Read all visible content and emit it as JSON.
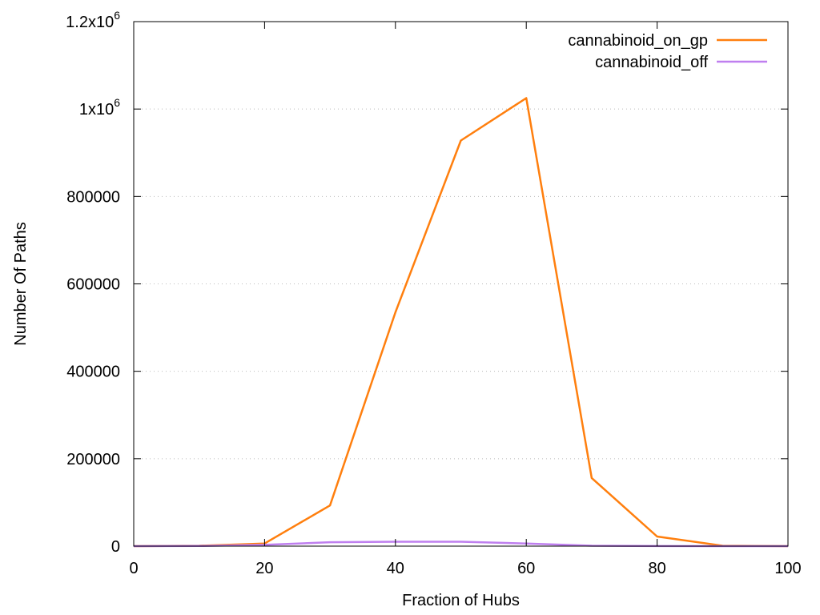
{
  "chart_data": {
    "type": "line",
    "title": "",
    "xlabel": "Fraction of Hubs",
    "ylabel": "Number Of Paths",
    "xlim": [
      0,
      100
    ],
    "ylim": [
      0,
      1200000
    ],
    "xticks": [
      0,
      20,
      40,
      60,
      80,
      100
    ],
    "xtick_labels": [
      "0",
      "20",
      "40",
      "60",
      "80",
      "100"
    ],
    "yticks": [
      0,
      200000,
      400000,
      600000,
      800000,
      1000000,
      1200000
    ],
    "ytick_labels": [
      {
        "text": "0",
        "sup": ""
      },
      {
        "text": "200000",
        "sup": ""
      },
      {
        "text": "400000",
        "sup": ""
      },
      {
        "text": "600000",
        "sup": ""
      },
      {
        "text": "800000",
        "sup": ""
      },
      {
        "text": "1x10",
        "sup": "6"
      },
      {
        "text": "1.2x10",
        "sup": "6"
      }
    ],
    "grid": "horizontal",
    "legend_position": "top-right",
    "x": [
      0,
      10,
      20,
      30,
      40,
      50,
      60,
      70,
      80,
      90,
      100
    ],
    "series": [
      {
        "name": "cannabinoid_on_gp",
        "color": "#ff7f0e",
        "values": [
          0,
          1000,
          6000,
          93000,
          535000,
          928000,
          1025000,
          156000,
          22000,
          1000,
          0
        ]
      },
      {
        "name": "cannabinoid_off",
        "color": "#bf7fef",
        "values": [
          0,
          300,
          3000,
          9000,
          10000,
          10000,
          6000,
          1000,
          200,
          0,
          0
        ]
      }
    ]
  }
}
